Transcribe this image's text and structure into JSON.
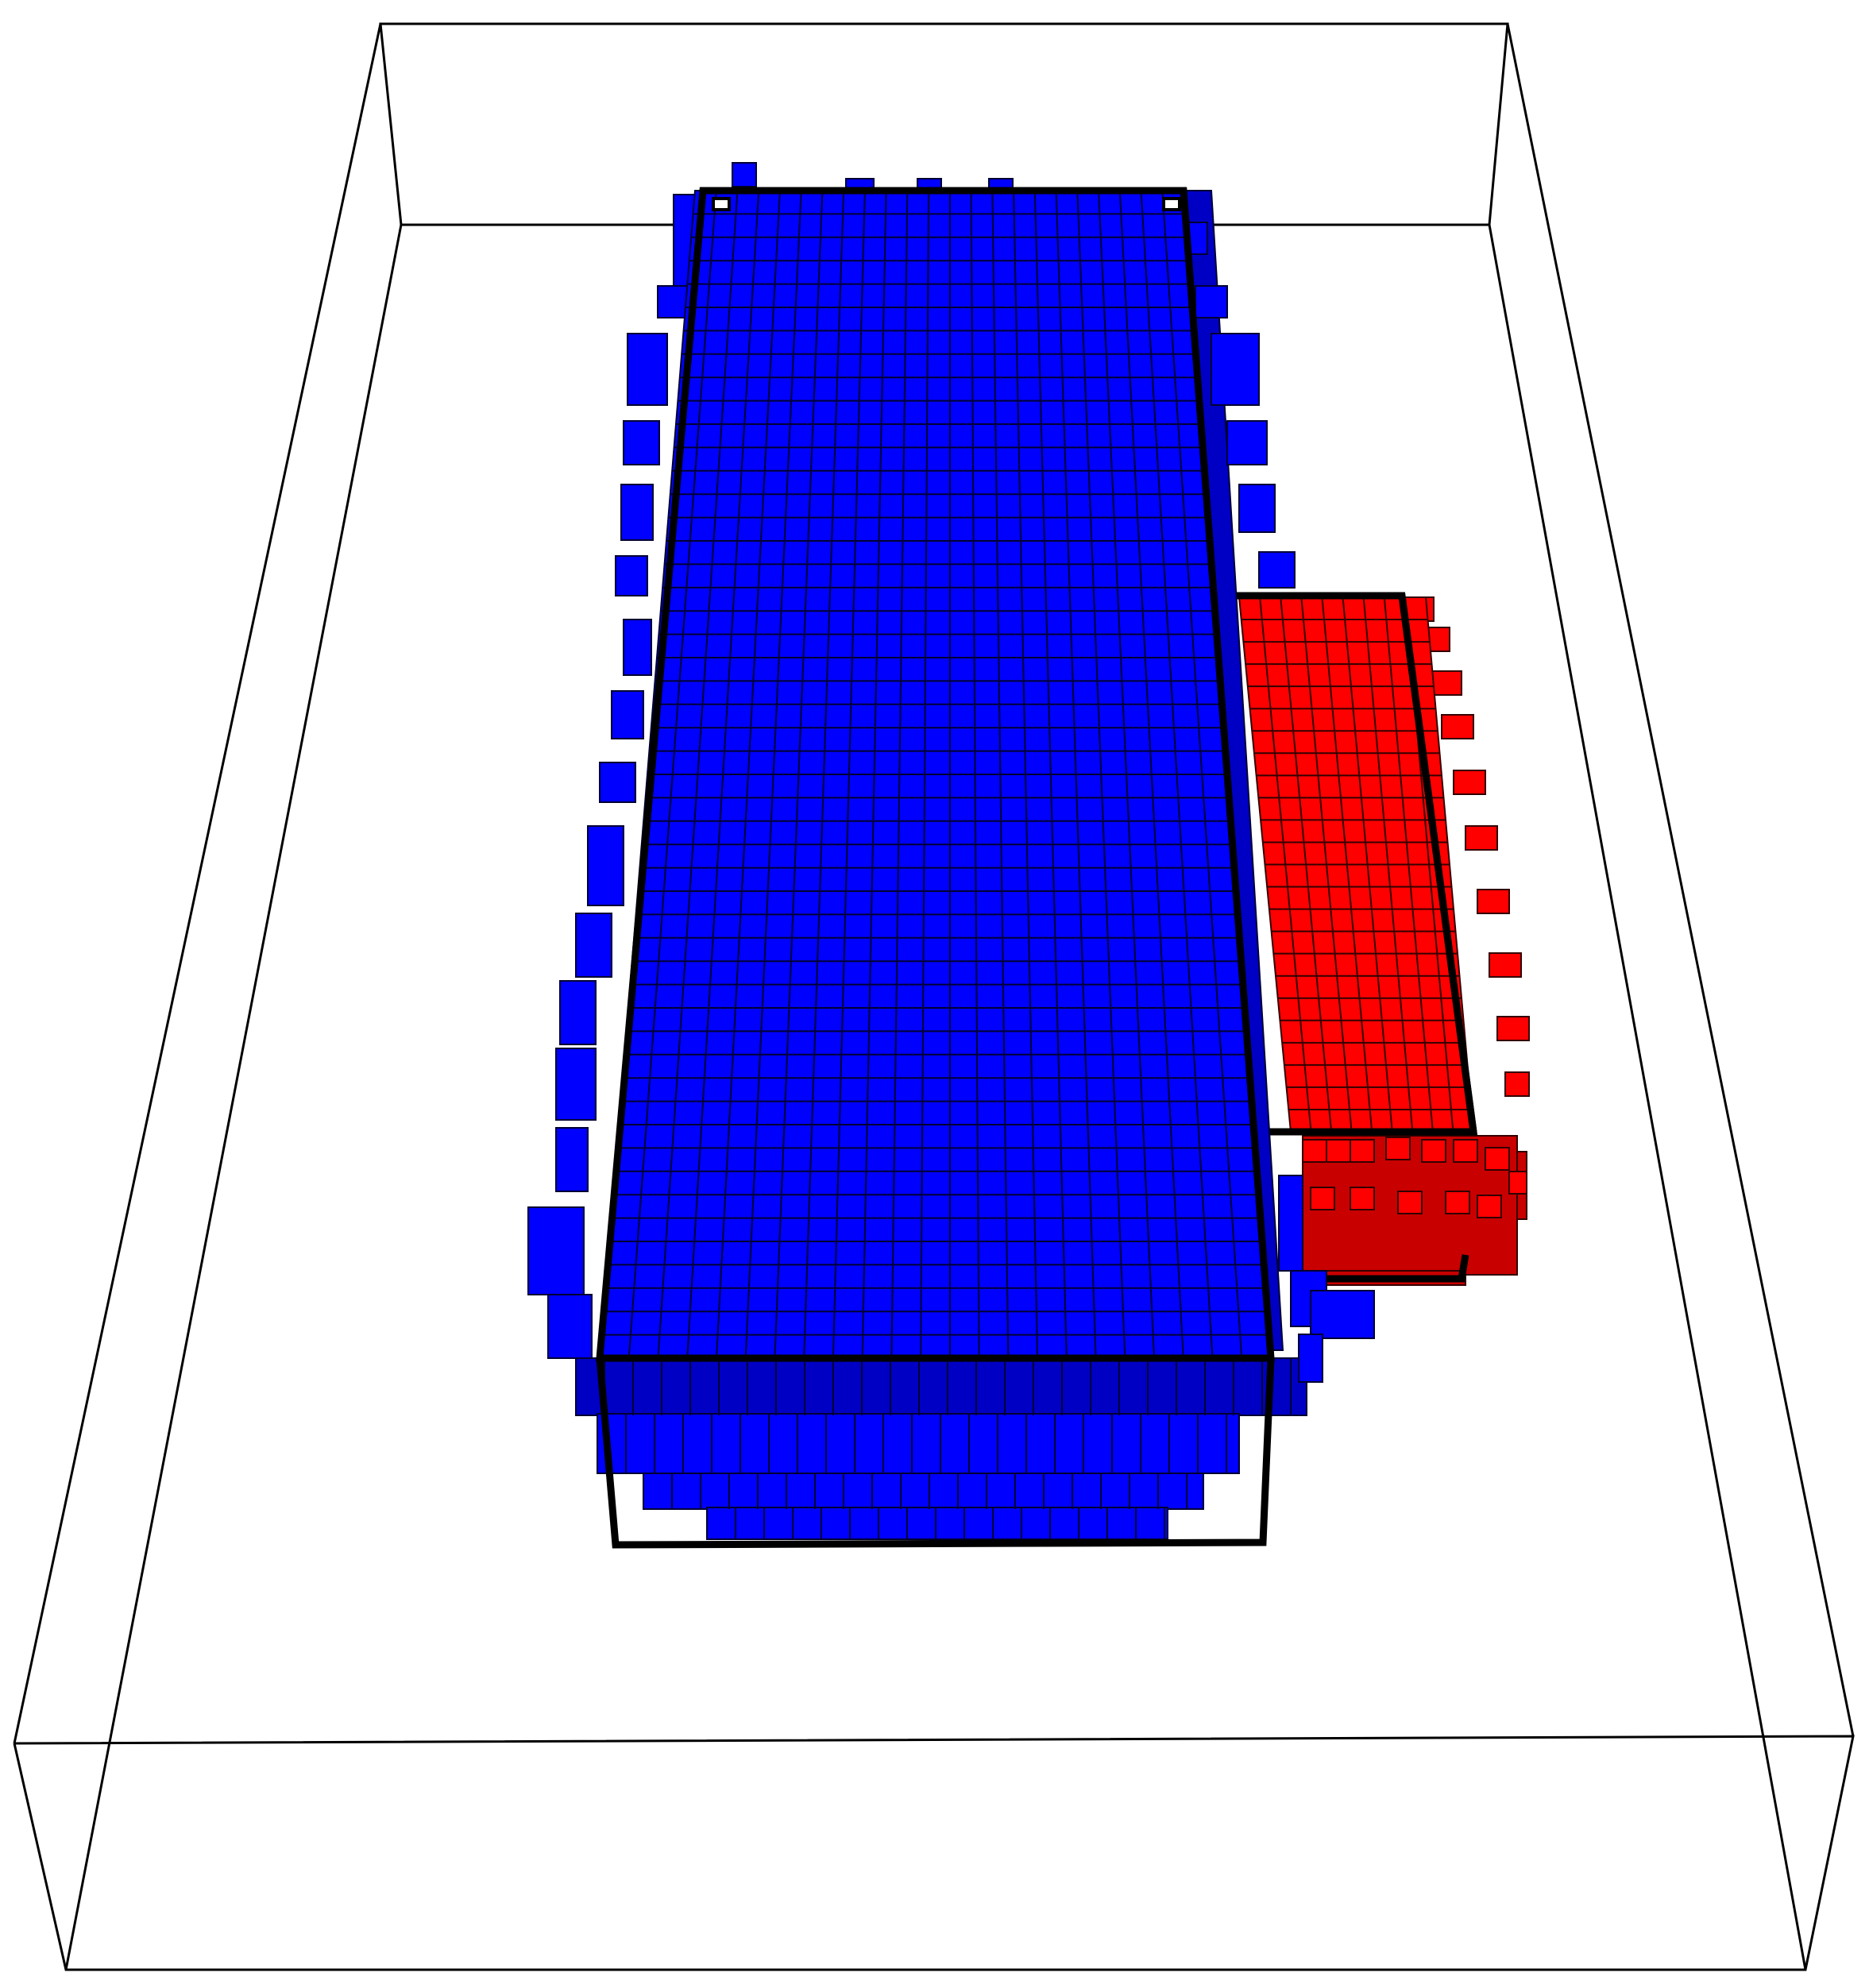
{
  "scene": {
    "view": "3d-perspective-voxel-render",
    "background_color": "#ffffff",
    "frame_color": "#000000",
    "objects": [
      {
        "name": "blue-voxel-object",
        "face_color": "#0000ff",
        "shadow_color": "#0000c4",
        "grid_line_color": "#000033",
        "grid": {
          "columns": 23,
          "rows": 50
        },
        "has_bounding_box": true
      },
      {
        "name": "red-voxel-object",
        "face_color": "#ff0000",
        "shadow_color": "#c80000",
        "grid_line_color": "#330000",
        "grid": {
          "columns": 9,
          "rows": 24
        },
        "has_bounding_box": true
      }
    ]
  }
}
